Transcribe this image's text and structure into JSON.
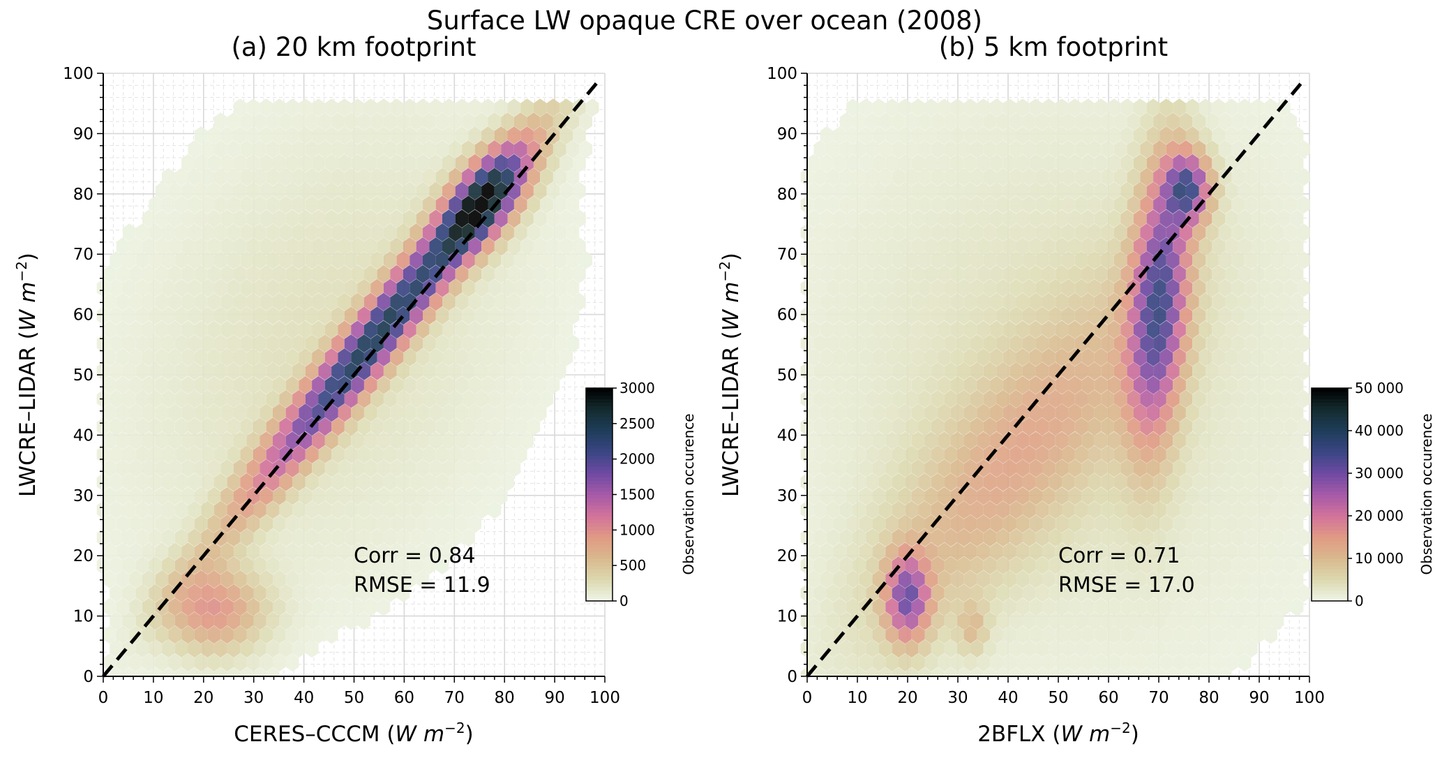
{
  "title": "Surface LW opaque CRE over ocean (2008)",
  "chart_data": [
    {
      "type": "heatmap",
      "subtype": "hexbin",
      "title": "(a) 20 km footprint",
      "xlabel": {
        "prefix": "CERES–CCCM (",
        "unit": "W m",
        "exp": "−2",
        "suffix": ")"
      },
      "ylabel": {
        "prefix": "LWCRE–LIDAR (",
        "unit": "W m",
        "exp": "−2",
        "suffix": ")"
      },
      "xlim": [
        0,
        100
      ],
      "ylim": [
        0,
        100
      ],
      "xticks": [
        "0",
        "10",
        "20",
        "30",
        "40",
        "50",
        "60",
        "70",
        "80",
        "90",
        "100"
      ],
      "yticks": [
        "0",
        "10",
        "20",
        "30",
        "40",
        "50",
        "60",
        "70",
        "80",
        "90",
        "100"
      ],
      "grid": true,
      "one_to_one_line": true,
      "stats": {
        "corr": "Corr = 0.84",
        "rmse": "RMSE = 11.9"
      },
      "colorbar": {
        "label": "Observation occurence",
        "vmin": 0,
        "vmax": 3000,
        "ticks": [
          "0",
          "500",
          "1000",
          "1500",
          "2000",
          "2500",
          "3000"
        ]
      },
      "density_components": [
        {
          "cx": 55,
          "cy": 57,
          "sx": 18,
          "sy": 19,
          "rho": 0.97,
          "w": 0.75
        },
        {
          "cx": 76,
          "cy": 79,
          "sx": 6,
          "sy": 6,
          "rho": 0.6,
          "w": 0.65
        },
        {
          "cx": 22,
          "cy": 11,
          "sx": 7,
          "sy": 5,
          "rho": 0.0,
          "w": 0.3
        },
        {
          "cx": 45,
          "cy": 55,
          "sx": 28,
          "sy": 28,
          "rho": 0.3,
          "w": 0.08
        }
      ]
    },
    {
      "type": "heatmap",
      "subtype": "hexbin",
      "title": "(b) 5 km footprint",
      "xlabel": {
        "prefix": "2BFLX (",
        "unit": "W m",
        "exp": "−2",
        "suffix": ")"
      },
      "ylabel": {
        "prefix": "LWCRE–LIDAR (",
        "unit": "W m",
        "exp": "−2",
        "suffix": ")"
      },
      "xlim": [
        0,
        100
      ],
      "ylim": [
        0,
        100
      ],
      "xticks": [
        "0",
        "10",
        "20",
        "30",
        "40",
        "50",
        "60",
        "70",
        "80",
        "90",
        "100"
      ],
      "yticks": [
        "0",
        "10",
        "20",
        "30",
        "40",
        "50",
        "60",
        "70",
        "80",
        "90",
        "100"
      ],
      "grid": true,
      "one_to_one_line": true,
      "stats": {
        "corr": "Corr = 0.71",
        "rmse": "RMSE = 17.0"
      },
      "colorbar": {
        "label": "Observation occurence",
        "vmin": 0,
        "vmax": 50000,
        "ticks": [
          "0",
          "10 000",
          "20 000",
          "30 000",
          "40 000",
          "50 000"
        ]
      },
      "density_components": [
        {
          "cx": 70,
          "cy": 62,
          "sx": 4,
          "sy": 16,
          "rho": 0.3,
          "w": 0.6
        },
        {
          "cx": 76,
          "cy": 81,
          "sx": 3,
          "sy": 4,
          "rho": 0.0,
          "w": 0.55
        },
        {
          "cx": 20,
          "cy": 13,
          "sx": 3,
          "sy": 5,
          "rho": 0.0,
          "w": 0.5
        },
        {
          "cx": 33,
          "cy": 8,
          "sx": 2,
          "sy": 3,
          "rho": 0.0,
          "w": 0.15
        },
        {
          "cx": 40,
          "cy": 35,
          "sx": 20,
          "sy": 20,
          "rho": 0.8,
          "w": 0.2
        },
        {
          "cx": 50,
          "cy": 50,
          "sx": 35,
          "sy": 32,
          "rho": 0.0,
          "w": 0.08
        }
      ]
    }
  ],
  "colormap": [
    "#eef6e8",
    "#dcd9b0",
    "#d9b98e",
    "#e09a84",
    "#d2739a",
    "#a65aa8",
    "#6e4aa2",
    "#3a4684",
    "#1f3d5a",
    "#142c2e",
    "#000000"
  ]
}
